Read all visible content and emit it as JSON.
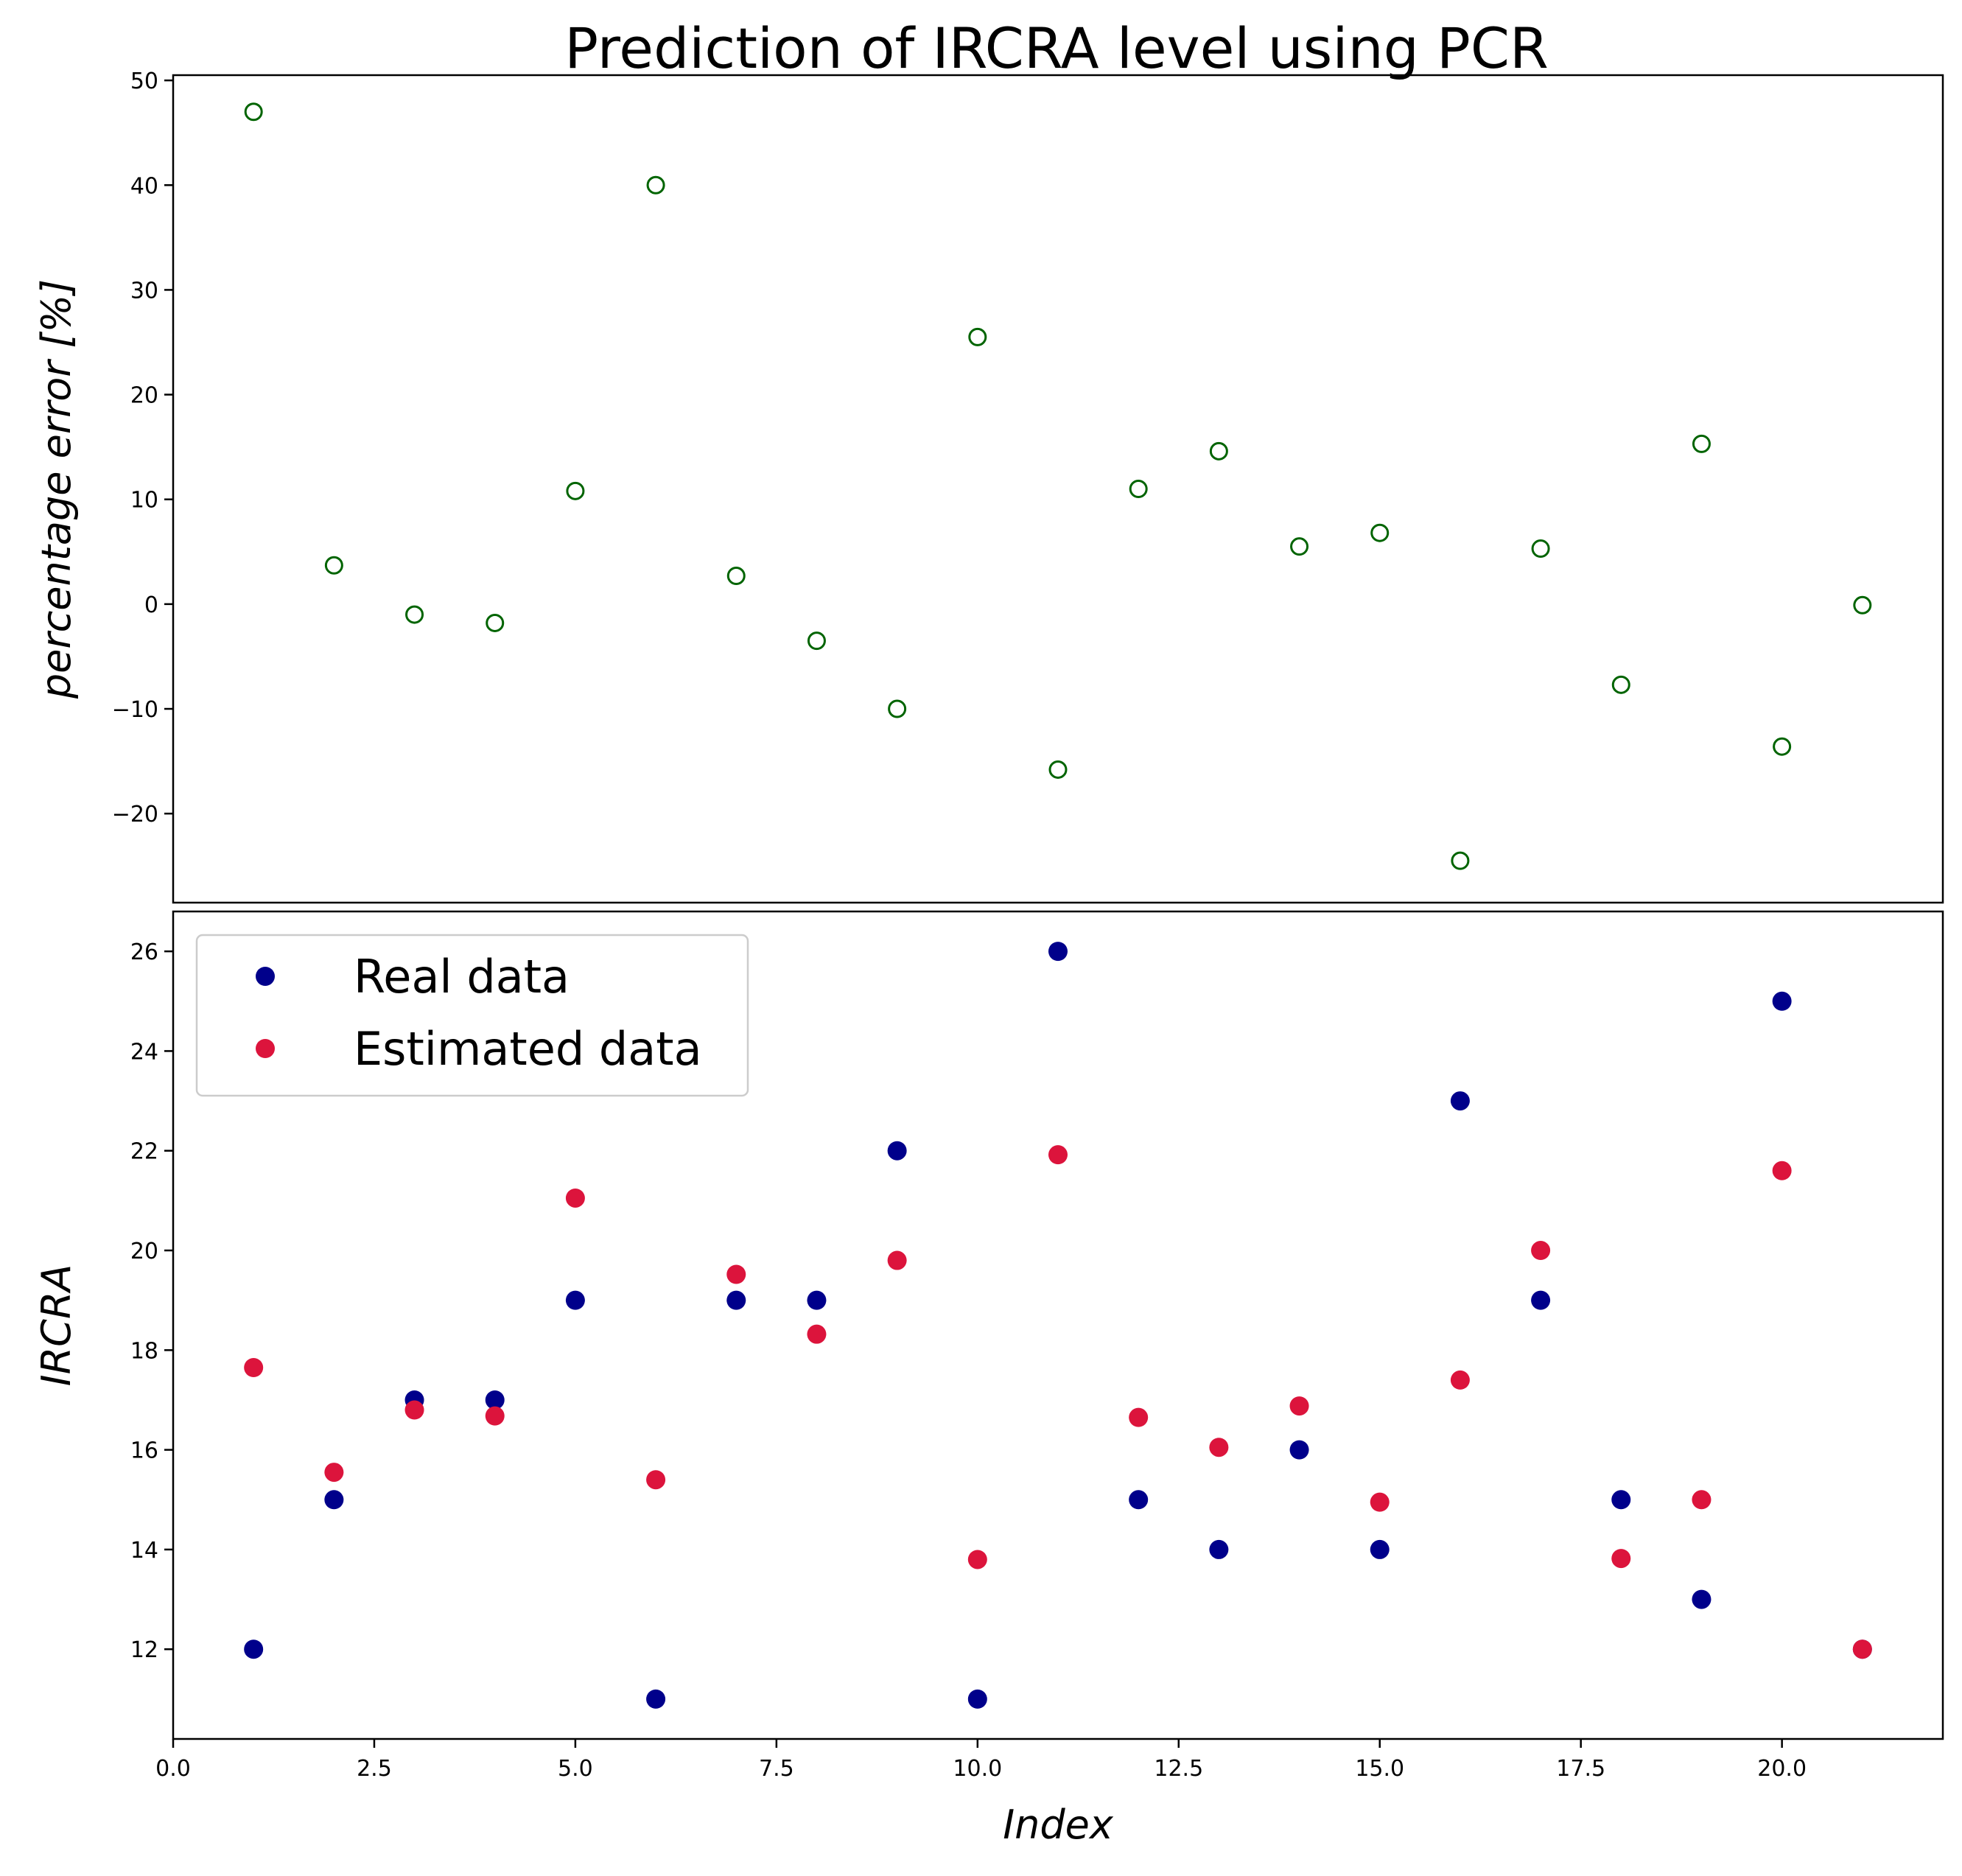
{
  "chart_data": [
    {
      "type": "scatter",
      "title": "Prediction of IRCRA level using PCR",
      "xlabel": "",
      "ylabel": "percentage error [%]",
      "xlim": [
        0,
        22
      ],
      "ylim": [
        -28.5,
        50.5
      ],
      "x_ticks": [],
      "y_ticks": [
        -20,
        -10,
        0,
        10,
        20,
        30,
        40,
        50
      ],
      "y_tick_labels": [
        "−20",
        "−10",
        "0",
        "10",
        "20",
        "30",
        "40",
        "50"
      ],
      "grid": false,
      "legend": "none",
      "series": [
        {
          "marker": "hollow-circle",
          "color": "#006400",
          "x": [
            1,
            2,
            3,
            4,
            5,
            6,
            7,
            8,
            9,
            10,
            11,
            12,
            13,
            14,
            15,
            16,
            17,
            18,
            19,
            20,
            21
          ],
          "y": [
            47,
            3.7,
            -1.0,
            -1.8,
            10.8,
            40,
            2.7,
            -3.5,
            -10,
            25.5,
            -15.8,
            11,
            14.6,
            5.5,
            6.8,
            -24.5,
            5.3,
            -7.7,
            15.3,
            -13.6,
            -0.1
          ]
        }
      ]
    },
    {
      "type": "scatter",
      "title": "",
      "xlabel": "Index",
      "ylabel": "IRCRA",
      "xlim": [
        0,
        22
      ],
      "ylim": [
        10.2,
        26.8
      ],
      "x_ticks": [
        0,
        2.5,
        5,
        7.5,
        10,
        12.5,
        15,
        17.5,
        20
      ],
      "x_tick_labels": [
        "0.0",
        "2.5",
        "5.0",
        "7.5",
        "10.0",
        "12.5",
        "15.0",
        "17.5",
        "20.0"
      ],
      "y_ticks": [
        12,
        14,
        16,
        18,
        20,
        22,
        24,
        26
      ],
      "y_tick_labels": [
        "12",
        "14",
        "16",
        "18",
        "20",
        "22",
        "24",
        "26"
      ],
      "grid": false,
      "legend": "top-left",
      "series": [
        {
          "name": "Real data",
          "marker": "filled-circle",
          "color": "#00008B",
          "x": [
            1,
            2,
            3,
            4,
            5,
            6,
            7,
            8,
            9,
            10,
            11,
            12,
            13,
            14,
            15,
            16,
            17,
            18,
            19,
            20,
            21
          ],
          "y": [
            12,
            15,
            17,
            17,
            19,
            11,
            19,
            19,
            22,
            11,
            26,
            15,
            14,
            16,
            14,
            23,
            19,
            15,
            13,
            25,
            12
          ]
        },
        {
          "name": "Estimated data",
          "marker": "filled-circle",
          "color": "#DC143C",
          "x": [
            1,
            2,
            3,
            4,
            5,
            6,
            7,
            8,
            9,
            10,
            11,
            12,
            13,
            14,
            15,
            16,
            17,
            18,
            19,
            20,
            21
          ],
          "y": [
            17.65,
            15.55,
            16.8,
            16.68,
            21.05,
            15.4,
            19.52,
            18.32,
            19.8,
            13.8,
            21.92,
            16.65,
            16.05,
            16.88,
            14.95,
            17.4,
            20.0,
            13.82,
            15.0,
            21.6,
            12.0
          ]
        }
      ]
    }
  ]
}
